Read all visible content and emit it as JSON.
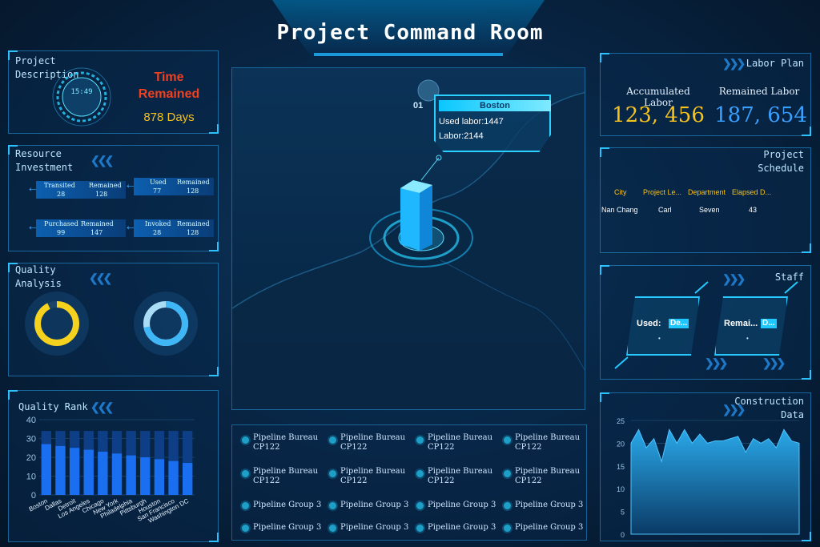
{
  "header": {
    "title": "Project Command Room"
  },
  "project_description": {
    "title_line1": "Project",
    "title_line2": "Description",
    "clock": "15:49",
    "time_remained_line1": "Time",
    "time_remained_line2": "Remained",
    "days": "878 Days"
  },
  "resource_investment": {
    "title_line1": "Resource",
    "title_line2": "Investment",
    "tiles": [
      {
        "l1": "Transited",
        "l2": "Remained",
        "v1": "28",
        "v2": "128"
      },
      {
        "l1": "Used",
        "l2": "Remained",
        "v1": "77",
        "v2": "128"
      },
      {
        "l1": "Purchased",
        "l2": "Remained",
        "v1": "99",
        "v2": "147"
      },
      {
        "l1": "Invoked",
        "l2": "Remained",
        "v1": "28",
        "v2": "128"
      }
    ]
  },
  "quality_analysis": {
    "title_line1": "Quality",
    "title_line2": "Analysis",
    "donut1": {
      "fraction": 0.93,
      "color": "#f5d21e"
    },
    "donut2": {
      "fraction": 0.72,
      "color": "#3fb6f5"
    }
  },
  "quality_rank": {
    "title": "Quality Rank",
    "chart_data": {
      "type": "bar",
      "categories": [
        "Boston",
        "Dallas",
        "Detroit",
        "Los Angeles",
        "Chicago",
        "New York",
        "Philadelphia",
        "Pittsburgh",
        "Houston",
        "San Francisco",
        "Washington DC"
      ],
      "series": [
        {
          "values": [
            27,
            26,
            25,
            24,
            23,
            22,
            21,
            20,
            19,
            18,
            17
          ],
          "color": "#1a6ff0"
        },
        {
          "values": [
            34,
            34,
            34,
            34,
            34,
            34,
            34,
            34,
            34,
            34,
            34
          ],
          "color": "#0e3f86"
        }
      ],
      "yticks": [
        "0",
        "10",
        "20",
        "30",
        "40"
      ],
      "ylim": [
        0,
        40
      ]
    }
  },
  "map": {
    "index_label": "01",
    "callout_title": "Boston",
    "callout_line1": "Used labor:1447",
    "callout_line2": "Labor:2144"
  },
  "pipeline": {
    "items": [
      {
        "l1": "Pipeline Bureau",
        "l2": "CP122"
      },
      {
        "l1": "Pipeline Bureau",
        "l2": "CP122"
      },
      {
        "l1": "Pipeline Bureau",
        "l2": "CP122"
      },
      {
        "l1": "Pipeline Bureau",
        "l2": "CP122"
      },
      {
        "l1": "Pipeline Bureau",
        "l2": "CP122"
      },
      {
        "l1": "Pipeline Bureau",
        "l2": "CP122"
      },
      {
        "l1": "Pipeline Bureau",
        "l2": "CP122"
      },
      {
        "l1": "Pipeline Bureau",
        "l2": "CP122"
      },
      {
        "l1": "Pipeline Group 3",
        "l2": ""
      },
      {
        "l1": "Pipeline Group 3",
        "l2": ""
      },
      {
        "l1": "Pipeline Group 3",
        "l2": ""
      },
      {
        "l1": "Pipeline Group 3",
        "l2": ""
      },
      {
        "l1": "Pipeline Group 3",
        "l2": ""
      },
      {
        "l1": "Pipeline Group 3",
        "l2": ""
      },
      {
        "l1": "Pipeline Group 3",
        "l2": ""
      },
      {
        "l1": "Pipeline Group 3",
        "l2": ""
      }
    ]
  },
  "labor_plan": {
    "title": "Labor Plan",
    "accumulated_label": "Accumulated Labor",
    "accumulated_value": "123, 456",
    "remained_label": "Remained Labor",
    "remained_value": "187, 654"
  },
  "project_schedule": {
    "title_line1": "Project",
    "title_line2": "Schedule",
    "headers": [
      "City",
      "Project Le...",
      "Department",
      "Elapsed D..."
    ],
    "row": [
      "Nan Chang",
      "Carl",
      "Seven",
      "43"
    ]
  },
  "staff": {
    "title": "Staff",
    "used_label": "Used:",
    "used_chip": "De...",
    "remain_label": "Remai...",
    "remain_chip": "D..."
  },
  "construction_data": {
    "title_line1": "Construction",
    "title_line2": "Data",
    "chart_data": {
      "type": "area",
      "values": [
        20,
        23,
        19,
        21,
        16,
        23,
        20,
        23,
        20,
        22,
        20,
        20.5,
        20.5,
        21,
        21.5,
        18,
        21,
        20,
        21,
        19,
        23,
        20.5,
        20
      ],
      "yticks": [
        "0",
        "5",
        "10",
        "15",
        "20",
        "25"
      ],
      "ylim": [
        0,
        25
      ]
    }
  }
}
